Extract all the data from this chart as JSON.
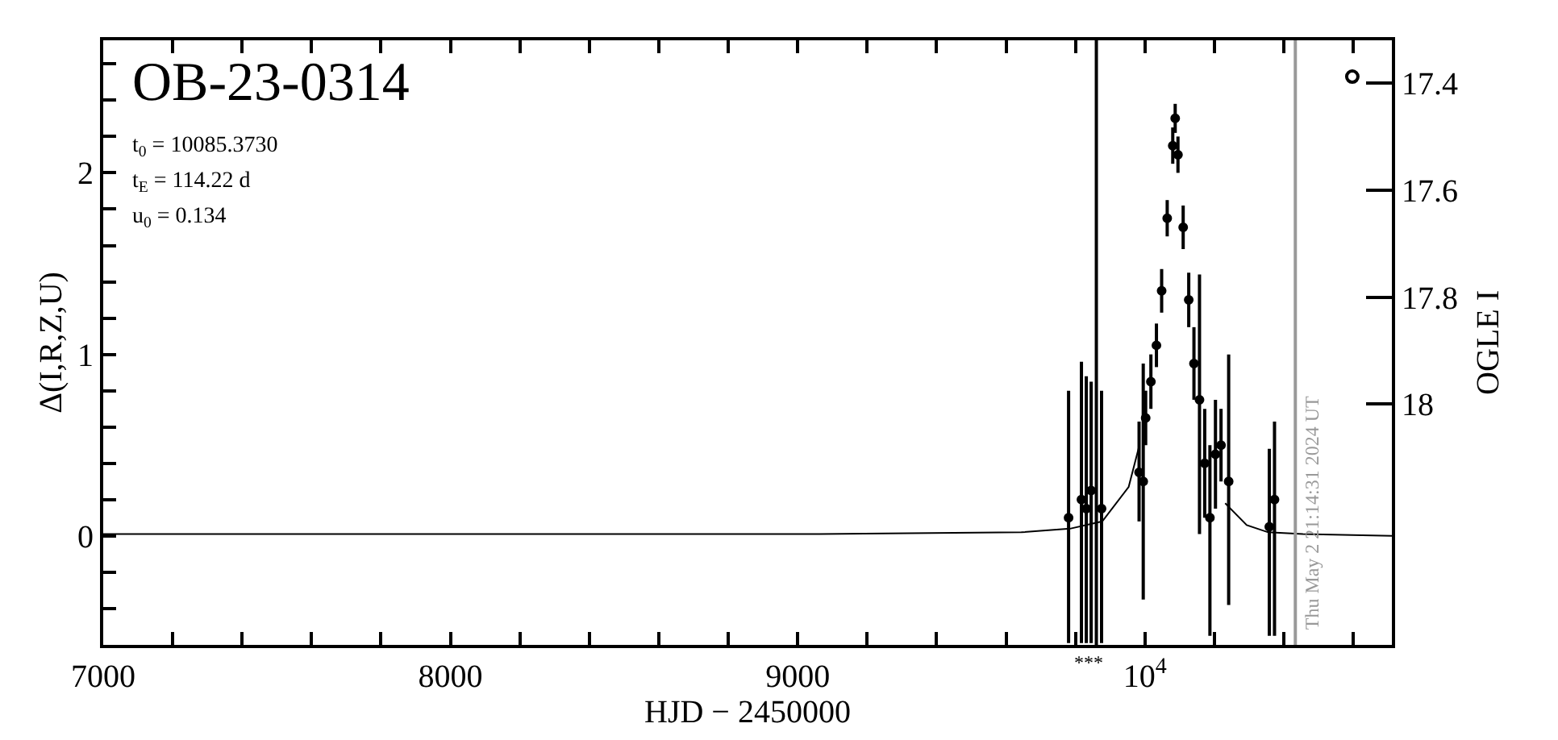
{
  "chart_data": {
    "type": "scatter",
    "xlabel": "HJD − 2450000",
    "ylabel": "Δ(I,R,Z,U)",
    "y2label": "OGLE I",
    "annotations": [
      "OB-23-0314",
      "t$_{0}$ = 10085.3730",
      "t$_{E}$ = 114.22 d",
      "u$_{0}$ = 0.134",
      {
        "text": "***",
        "x": 9836,
        "y": -0.6
      },
      "Thu May 2 21:14:31 2024 UT"
    ],
    "xlim": [
      7000,
      10711
    ],
    "ylim": [
      -0.6,
      2.73
    ],
    "y2lim": [
      18.45,
      17.32
    ],
    "xticks": [
      7000,
      {
        "value": 7200,
        "label": null
      },
      {
        "value": 7400,
        "label": null
      },
      {
        "value": 7600,
        "label": null
      },
      {
        "value": 7800,
        "label": null
      },
      8000,
      {
        "value": 8200,
        "label": null
      },
      {
        "value": 8400,
        "label": null
      },
      {
        "value": 8600,
        "label": null
      },
      {
        "value": 8800,
        "label": null
      },
      9000,
      {
        "value": 9200,
        "label": null
      },
      {
        "value": 9400,
        "label": null
      },
      {
        "value": 9600,
        "label": null
      },
      {
        "value": 9800,
        "label": null
      },
      {
        "value": 10000,
        "label": "10$^{4}$"
      },
      {
        "value": 10200,
        "label": null
      },
      {
        "value": 10400,
        "label": null
      },
      {
        "value": 10600,
        "label": null
      }
    ],
    "yticks": [
      {
        "value": -0.4,
        "label": null
      },
      {
        "value": -0.2,
        "label": null
      },
      0,
      {
        "value": 0.2,
        "label": null
      },
      {
        "value": 0.4,
        "label": null
      },
      {
        "value": 0.6,
        "label": null
      },
      {
        "value": 0.8,
        "label": null
      },
      1,
      {
        "value": 1.2,
        "label": null
      },
      {
        "value": 1.4,
        "label": null
      },
      {
        "value": 1.6,
        "label": null
      },
      {
        "value": 1.8,
        "label": null
      },
      2,
      {
        "value": 2.2,
        "label": null
      },
      {
        "value": 2.4,
        "label": null
      },
      {
        "value": 2.6,
        "label": null
      }
    ],
    "y2ticks": [
      17.4,
      17.6,
      17.8,
      18
    ],
    "ref_lines": [
      {
        "axis": "x",
        "value": 9860,
        "color": "#000000"
      },
      {
        "axis": "x",
        "value": 10433,
        "color": "#999999"
      }
    ],
    "series": [
      {
        "marker": "circle",
        "color": "#000000",
        "x": [
          9780,
          9817,
          9831,
          9845,
          9875,
          9983,
          9995,
          10002,
          10017,
          10033,
          10048,
          10064,
          10080,
          10087,
          10095,
          10110,
          10126,
          10141,
          10157,
          10172,
          10187,
          10203,
          10219,
          10241,
          10358,
          10373
        ],
        "values": [
          0.1,
          0.2,
          0.15,
          0.25,
          0.15,
          0.35,
          0.3,
          0.65,
          0.85,
          1.05,
          1.35,
          1.75,
          2.15,
          2.3,
          2.1,
          1.7,
          1.3,
          0.95,
          0.75,
          0.4,
          0.1,
          0.45,
          0.5,
          0.3,
          0.05,
          0.2
        ],
        "errors": [
          [
            -0.59,
            0.8
          ],
          [
            -0.59,
            0.96
          ],
          [
            -0.59,
            0.88
          ],
          [
            -0.59,
            0.85
          ],
          [
            -0.59,
            0.8
          ],
          [
            0.08,
            0.63
          ],
          [
            -0.35,
            0.95
          ],
          0.15,
          0.15,
          0.12,
          0.12,
          0.1,
          0.1,
          0.08,
          0.1,
          0.12,
          0.15,
          0.2,
          [
            0.01,
            1.44
          ],
          0.3,
          [
            -0.55,
            0.5
          ],
          0.3,
          0.2,
          [
            -0.38,
            1.0
          ],
          [
            -0.55,
            0.48
          ],
          [
            -0.55,
            0.63
          ]
        ]
      },
      {
        "marker": "circle-open",
        "color": "#000000",
        "x": [
          10597
        ],
        "values": [
          2.53
        ]
      },
      {
        "type": "line",
        "color": "#000000",
        "line_style": "solid",
        "x": [
          7000,
          8020,
          9035,
          9644,
          9784,
          9877,
          9953,
          9984,
          10009,
          10202,
          10231,
          10293,
          10355,
          10455,
          10711
        ],
        "values": [
          0.01,
          0.01,
          0.01,
          0.02,
          0.04,
          0.08,
          0.27,
          0.5,
          null,
          null,
          0.18,
          0.06,
          0.02,
          0.01,
          0.0
        ]
      }
    ]
  }
}
